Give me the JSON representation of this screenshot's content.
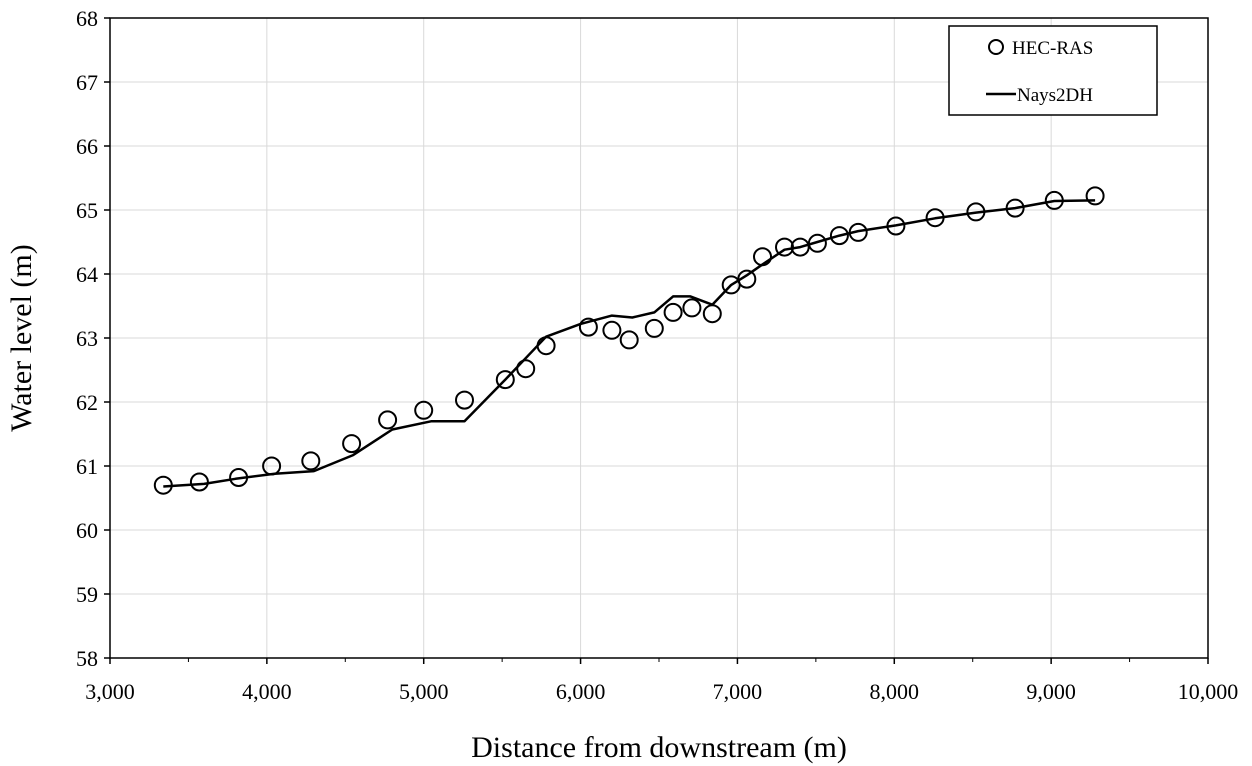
{
  "chart_data": {
    "type": "scatter",
    "xlabel": "Distance from downstream (m)",
    "ylabel": "Water level (m)",
    "xlim": [
      3000,
      10000
    ],
    "ylim": [
      58,
      68
    ],
    "x_ticks": [
      3000,
      4000,
      5000,
      6000,
      7000,
      8000,
      9000,
      10000
    ],
    "x_tick_labels": [
      "3,000",
      "4,000",
      "5,000",
      "6,000",
      "7,000",
      "8,000",
      "9,000",
      "10,000"
    ],
    "y_ticks": [
      58,
      59,
      60,
      61,
      62,
      63,
      64,
      65,
      66,
      67,
      68
    ],
    "y_tick_labels": [
      "58",
      "59",
      "60",
      "61",
      "62",
      "63",
      "64",
      "65",
      "66",
      "67",
      "68"
    ],
    "grid": true,
    "legend_position": "top-right",
    "series": [
      {
        "name": "HEC-RAS",
        "style": "markers",
        "marker": "open-circle",
        "color": "#000000",
        "x": [
          3340,
          3570,
          3820,
          4030,
          4280,
          4540,
          4770,
          5000,
          5260,
          5520,
          5650,
          5780,
          6050,
          6200,
          6310,
          6470,
          6590,
          6710,
          6840,
          6960,
          7060,
          7160,
          7300,
          7400,
          7510,
          7650,
          7770,
          8010,
          8260,
          8520,
          8770,
          9020,
          9280
        ],
        "y": [
          60.7,
          60.75,
          60.82,
          61.0,
          61.08,
          61.35,
          61.72,
          61.87,
          62.03,
          62.35,
          62.52,
          62.88,
          63.17,
          63.12,
          62.97,
          63.15,
          63.4,
          63.47,
          63.38,
          63.83,
          63.92,
          64.27,
          64.42,
          64.42,
          64.48,
          64.6,
          64.65,
          64.75,
          64.88,
          64.97,
          65.03,
          65.15,
          65.22
        ]
      },
      {
        "name": "Nays2DH",
        "style": "line",
        "color": "#000000",
        "x": [
          3340,
          3600,
          3800,
          4050,
          4300,
          4550,
          4800,
          5050,
          5260,
          5520,
          5780,
          6000,
          6200,
          6330,
          6470,
          6590,
          6700,
          6840,
          6960,
          7060,
          7160,
          7300,
          7400,
          7510,
          7650,
          7770,
          8010,
          8260,
          8520,
          8770,
          9020,
          9280
        ],
        "y": [
          60.68,
          60.72,
          60.8,
          60.88,
          60.92,
          61.17,
          61.57,
          61.7,
          61.7,
          62.35,
          63.02,
          63.22,
          63.35,
          63.32,
          63.4,
          63.65,
          63.65,
          63.52,
          63.83,
          63.98,
          64.15,
          64.38,
          64.42,
          64.5,
          64.6,
          64.67,
          64.76,
          64.87,
          64.96,
          65.03,
          65.14,
          65.15
        ]
      }
    ]
  }
}
